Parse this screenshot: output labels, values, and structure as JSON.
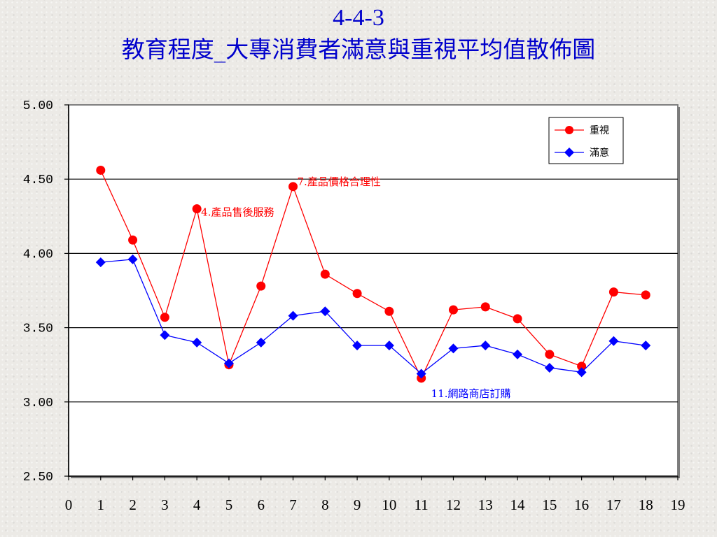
{
  "title": {
    "line1": "4-4-3",
    "line2": "教育程度_大專消費者滿意與重視平均值散佈圖"
  },
  "colors": {
    "importance": "#ff0000",
    "satisfaction": "#0000ff",
    "title": "#0000cc"
  },
  "chart_data": {
    "type": "line",
    "title": "教育程度_大專消費者滿意與重視平均值散佈圖",
    "xlabel": "",
    "ylabel": "",
    "xlim": [
      0,
      19
    ],
    "ylim": [
      2.5,
      5.0
    ],
    "xticks": [
      "0",
      "1",
      "2",
      "3",
      "4",
      "5",
      "6",
      "7",
      "8",
      "9",
      "10",
      "11",
      "12",
      "13",
      "14",
      "15",
      "16",
      "17",
      "18",
      "19"
    ],
    "yticks": [
      "2.50",
      "3.00",
      "3.50",
      "4.00",
      "4.50",
      "5.00"
    ],
    "grid": "horizontal",
    "legend": "top-right",
    "x": [
      1,
      2,
      3,
      4,
      5,
      6,
      7,
      8,
      9,
      10,
      11,
      12,
      13,
      14,
      15,
      16,
      17,
      18
    ],
    "series": [
      {
        "name": "重視",
        "marker": "circle",
        "values": [
          4.56,
          4.09,
          3.57,
          4.3,
          3.25,
          3.78,
          4.45,
          3.86,
          3.73,
          3.61,
          3.16,
          3.62,
          3.64,
          3.56,
          3.32,
          3.24,
          3.74,
          3.72
        ]
      },
      {
        "name": "滿意",
        "marker": "diamond",
        "values": [
          3.94,
          3.96,
          3.45,
          3.4,
          3.26,
          3.4,
          3.58,
          3.61,
          3.38,
          3.38,
          3.19,
          3.36,
          3.38,
          3.32,
          3.23,
          3.2,
          3.41,
          3.38
        ]
      }
    ],
    "annotations": [
      {
        "text": "4.產品售後服務",
        "x": 4,
        "y": 4.3,
        "color": "#ff0000"
      },
      {
        "text": "7.產品價格合理性",
        "x": 7,
        "y": 4.45,
        "color": "#ff0000"
      },
      {
        "text": "11.網路商店訂購",
        "x": 11,
        "y": 3.16,
        "color": "#0000ff"
      }
    ]
  }
}
